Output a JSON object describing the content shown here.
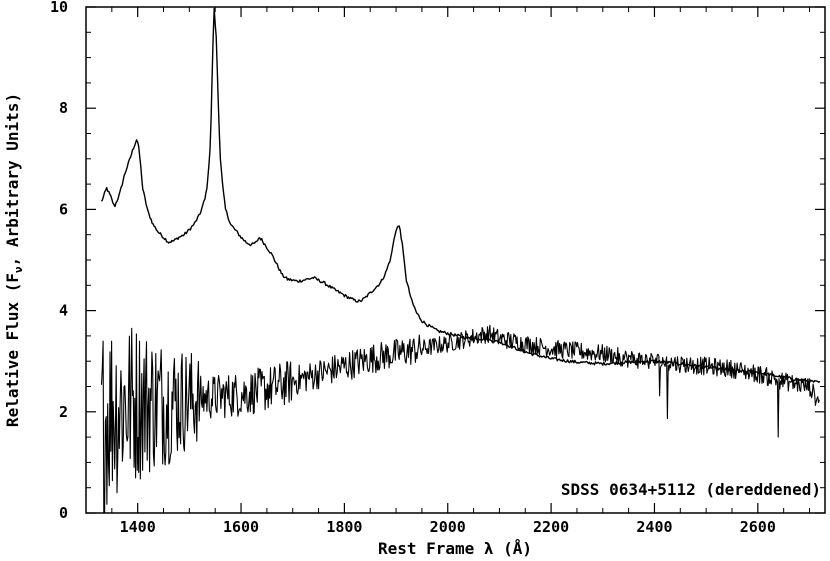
{
  "chart_data": {
    "type": "line",
    "title": "",
    "xlabel": "Rest Frame λ (Å)",
    "ylabel_parts": [
      "Relative Flux (F",
      "ν",
      ", Arbitrary Units)"
    ],
    "xlim": [
      1300,
      2730
    ],
    "ylim": [
      0,
      10
    ],
    "x_ticks": [
      1400,
      1600,
      1800,
      2000,
      2200,
      2400,
      2600
    ],
    "x_minor_step": 50,
    "y_ticks": [
      0,
      2,
      4,
      6,
      8,
      10
    ],
    "y_minor_step": 0.5,
    "grid": false,
    "annotation": "SDSS 0634+5112 (dereddened)",
    "series": [
      {
        "style": "smooth",
        "x": [
          1330,
          1340,
          1348,
          1355,
          1365,
          1375,
          1385,
          1393,
          1398,
          1401,
          1404,
          1410,
          1420,
          1430,
          1440,
          1450,
          1460,
          1470,
          1480,
          1490,
          1500,
          1510,
          1520,
          1530,
          1535,
          1540,
          1543,
          1545,
          1548,
          1552,
          1556,
          1560,
          1565,
          1570,
          1580,
          1590,
          1600,
          1610,
          1620,
          1630,
          1635,
          1640,
          1650,
          1660,
          1670,
          1680,
          1690,
          1700,
          1710,
          1720,
          1740,
          1750,
          1760,
          1780,
          1800,
          1820,
          1830,
          1840,
          1850,
          1860,
          1870,
          1880,
          1890,
          1895,
          1900,
          1905,
          1908,
          1912,
          1916,
          1920,
          1930,
          1940,
          1950,
          1960,
          1970,
          1980,
          2000,
          2020,
          2040,
          2060,
          2080,
          2100,
          2120,
          2140,
          2160,
          2180,
          2200,
          2250,
          2300,
          2350,
          2400,
          2450,
          2500,
          2550,
          2600,
          2650,
          2700,
          2720
        ],
        "y": [
          6.15,
          6.42,
          6.25,
          6.05,
          6.3,
          6.7,
          7.0,
          7.25,
          7.38,
          7.3,
          7.05,
          6.4,
          5.95,
          5.7,
          5.55,
          5.45,
          5.35,
          5.38,
          5.45,
          5.5,
          5.6,
          5.72,
          5.9,
          6.2,
          6.5,
          7.2,
          8.1,
          9.1,
          9.95,
          9.4,
          8.1,
          7.0,
          6.4,
          6.0,
          5.7,
          5.58,
          5.45,
          5.35,
          5.3,
          5.35,
          5.45,
          5.4,
          5.25,
          5.1,
          4.9,
          4.7,
          4.62,
          4.6,
          4.58,
          4.6,
          4.65,
          4.6,
          4.55,
          4.42,
          4.3,
          4.2,
          4.18,
          4.25,
          4.35,
          4.45,
          4.55,
          4.75,
          5.05,
          5.35,
          5.6,
          5.68,
          5.6,
          5.3,
          4.95,
          4.6,
          4.2,
          3.95,
          3.8,
          3.72,
          3.66,
          3.6,
          3.55,
          3.5,
          3.45,
          3.45,
          3.42,
          3.38,
          3.3,
          3.22,
          3.15,
          3.1,
          3.05,
          2.98,
          2.95,
          2.98,
          3.0,
          2.95,
          2.88,
          2.82,
          2.78,
          2.68,
          2.6,
          2.58
        ]
      },
      {
        "style": "noisy",
        "x": [
          1330,
          1350,
          1380,
          1400,
          1450,
          1500,
          1550,
          1600,
          1650,
          1700,
          1750,
          1800,
          1850,
          1900,
          1950,
          2000,
          2050,
          2080,
          2100,
          2150,
          2200,
          2250,
          2300,
          2350,
          2400,
          2450,
          2500,
          2550,
          2600,
          2650,
          2700,
          2720
        ],
        "y": [
          1.8,
          2.1,
          2.2,
          2.2,
          2.2,
          2.25,
          2.3,
          2.35,
          2.45,
          2.6,
          2.75,
          2.9,
          3.05,
          3.15,
          3.25,
          3.35,
          3.48,
          3.55,
          3.45,
          3.35,
          3.25,
          3.2,
          3.15,
          3.05,
          3.0,
          2.95,
          2.9,
          2.85,
          2.75,
          2.6,
          2.5,
          2.15
        ]
      }
    ]
  }
}
